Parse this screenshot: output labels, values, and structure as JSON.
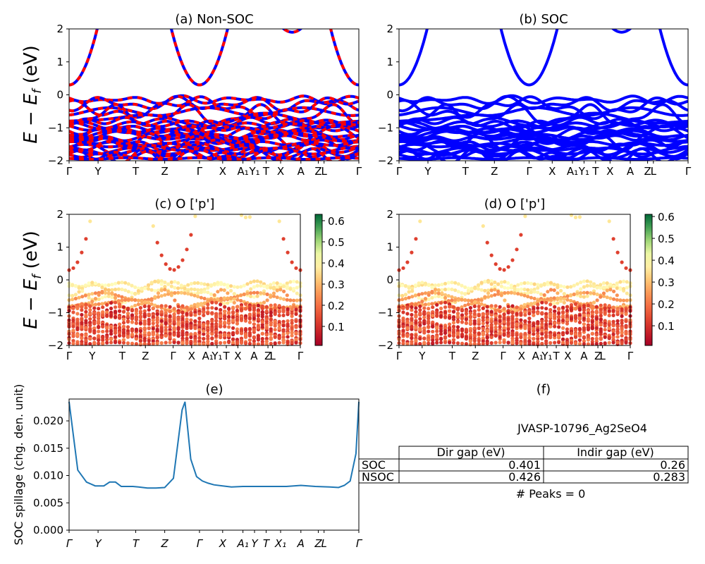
{
  "colors": {
    "nonsoc_a": "#0000ff",
    "nonsoc_b": "#ff0000",
    "soc": "#0000ff",
    "spillage": "#1f77b4",
    "colormap": "RdYlGn"
  },
  "band_panels": {
    "ylabel": "E − E_f (eV)",
    "ylim": [
      -2,
      2
    ],
    "yticks": [
      "2",
      "1",
      "0",
      "−1",
      "−2"
    ],
    "kpath_ticks": [
      "Γ",
      "Y",
      "T",
      "Z",
      "Γ",
      "X",
      "A₁",
      "Y₁",
      "T",
      "X",
      "A",
      "Z",
      "L",
      "Γ"
    ]
  },
  "panel_a": {
    "title": "(a) Non-SOC"
  },
  "panel_b": {
    "title": "(b) SOC"
  },
  "panel_c": {
    "title": "(c)  O ['p']",
    "colorbar_ticks": [
      "0.6",
      "0.5",
      "0.4",
      "0.3",
      "0.2",
      "0.1"
    ]
  },
  "panel_d": {
    "title": "(d) O ['p']",
    "colorbar_ticks": [
      "0.6",
      "0.5",
      "0.4",
      "0.3",
      "0.2",
      "0.1"
    ]
  },
  "panel_e": {
    "title": "(e)",
    "ylabel": "SOC spillage (chg. den. unit)"
  },
  "panel_f": {
    "title": "(f)",
    "material": "JVASP-10796_Ag2SeO4",
    "table": {
      "headers": [
        "Dir gap (eV)",
        "Indir gap (eV)"
      ],
      "rows": [
        {
          "label": "SOC",
          "dir": "0.401",
          "indir": "0.26"
        },
        {
          "label": "NSOC",
          "dir": "0.426",
          "indir": "0.283"
        }
      ]
    },
    "peaks": "# Peaks = 0"
  },
  "chart_data": [
    {
      "type": "line",
      "title": "(a) Non-SOC",
      "ylabel": "E − E_f (eV)",
      "ylim": [
        -2,
        2
      ],
      "xticks": [
        "Γ",
        "Y",
        "T",
        "Z",
        "Γ",
        "X",
        "A₁",
        "Y₁",
        "T",
        "X",
        "A",
        "Z",
        "L",
        "Γ"
      ],
      "series": [
        {
          "values_at_gamma_conduction": [
            0.3
          ]
        }
      ]
    },
    {
      "type": "line",
      "title": "(b) SOC",
      "ylabel": "",
      "ylim": [
        -2,
        2
      ],
      "xticks": [
        "Γ",
        "Y",
        "T",
        "Z",
        "Γ",
        "X",
        "A₁",
        "Y₁",
        "T",
        "X",
        "A",
        "Z",
        "L",
        "Γ"
      ],
      "series": [
        {
          "values_at_gamma_conduction": [
            0.3
          ]
        }
      ]
    },
    {
      "type": "scatter",
      "title": "(c)  O ['p']",
      "ylabel": "E − E_f (eV)",
      "ylim": [
        -2,
        2
      ],
      "colorbar_range": [
        0.01,
        0.63
      ],
      "xticks": [
        "Γ",
        "Y",
        "T",
        "Z",
        "Γ",
        "X",
        "A₁",
        "Y₁",
        "T",
        "X",
        "A",
        "Z",
        "L",
        "Γ"
      ]
    },
    {
      "type": "scatter",
      "title": "(d) O ['p']",
      "ylabel": "",
      "ylim": [
        -2,
        2
      ],
      "colorbar_range": [
        0.01,
        0.61
      ],
      "xticks": [
        "Γ",
        "Y",
        "T",
        "Z",
        "Γ",
        "X",
        "A₁",
        "Y₁",
        "T",
        "X",
        "A",
        "Z",
        "L",
        "Γ"
      ]
    },
    {
      "type": "line",
      "title": "(e)",
      "ylabel": "SOC spillage (chg. den. unit)",
      "ylim": [
        0,
        0.024
      ],
      "yticks": [
        "0.000",
        "0.005",
        "0.010",
        "0.015",
        "0.020"
      ],
      "xticks": [
        "Γ",
        "Y",
        "T",
        "Z",
        "Γ",
        "X",
        "A₁",
        "Y",
        "T",
        "X₁",
        "A",
        "Z",
        "L",
        "Γ"
      ],
      "x": [
        0,
        0.03,
        0.06,
        0.09,
        0.12,
        0.14,
        0.16,
        0.18,
        0.2,
        0.22,
        0.24,
        0.27,
        0.3,
        0.33,
        0.36,
        0.39,
        0.4,
        0.42,
        0.44,
        0.46,
        0.48,
        0.5,
        0.53,
        0.56,
        0.6,
        0.65,
        0.7,
        0.75,
        0.8,
        0.85,
        0.9,
        0.93,
        0.95,
        0.97,
        0.99,
        1.0
      ],
      "y": [
        0.0235,
        0.011,
        0.0088,
        0.0081,
        0.0081,
        0.0088,
        0.0088,
        0.008,
        0.008,
        0.008,
        0.0079,
        0.0077,
        0.0077,
        0.0078,
        0.0095,
        0.022,
        0.0235,
        0.013,
        0.0098,
        0.009,
        0.0086,
        0.0083,
        0.0081,
        0.0079,
        0.008,
        0.008,
        0.008,
        0.008,
        0.0082,
        0.008,
        0.0079,
        0.0078,
        0.0082,
        0.009,
        0.014,
        0.0235
      ]
    }
  ]
}
